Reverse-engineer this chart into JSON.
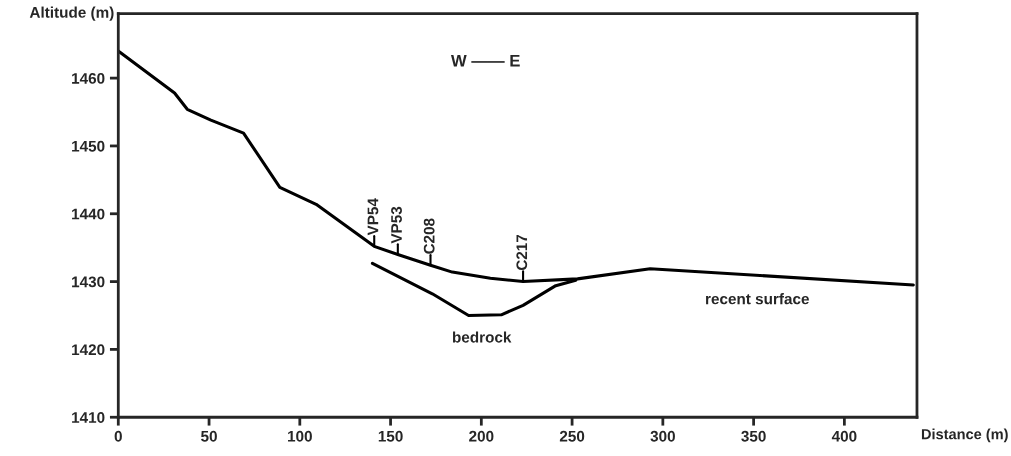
{
  "chart_data": {
    "type": "line",
    "xlabel": "Distance (m)",
    "ylabel": "Altitude (m)",
    "xlim": [
      0,
      440
    ],
    "ylim": [
      1410,
      1469.5
    ],
    "xticks": [
      0,
      50,
      100,
      150,
      200,
      250,
      300,
      350,
      400
    ],
    "yticks": [
      1410,
      1420,
      1430,
      1440,
      1450,
      1460
    ],
    "grid": false,
    "marker": "none",
    "line_style": "solid",
    "series": [
      {
        "color": "#000000",
        "x": [
          0,
          31,
          38,
          51,
          69,
          89,
          109,
          141,
          154,
          172,
          184,
          205,
          223,
          253,
          293,
          438
        ],
        "values": [
          1464,
          1457.8,
          1455.4,
          1453.8,
          1451.9,
          1443.9,
          1441.4,
          1435.2,
          1434.0,
          1432.4,
          1431.4,
          1430.5,
          1430.0,
          1430.4,
          1431.9,
          1429.5
        ]
      },
      {
        "color": "#000000",
        "x": [
          140,
          173,
          193,
          211,
          223,
          241,
          252
        ],
        "values": [
          1432.7,
          1428.2,
          1425.0,
          1425.1,
          1426.5,
          1429.4,
          1430.2
        ]
      }
    ],
    "annotations": [
      "W —— E",
      {
        "text": "VP54",
        "x": 141,
        "y": 1435.2
      },
      {
        "text": "VP53",
        "x": 154,
        "y": 1434.0
      },
      {
        "text": "C208",
        "x": 172,
        "y": 1432.4
      },
      {
        "text": "C217",
        "x": 223,
        "y": 1430.0
      },
      "recent surface",
      "bedrock"
    ]
  }
}
